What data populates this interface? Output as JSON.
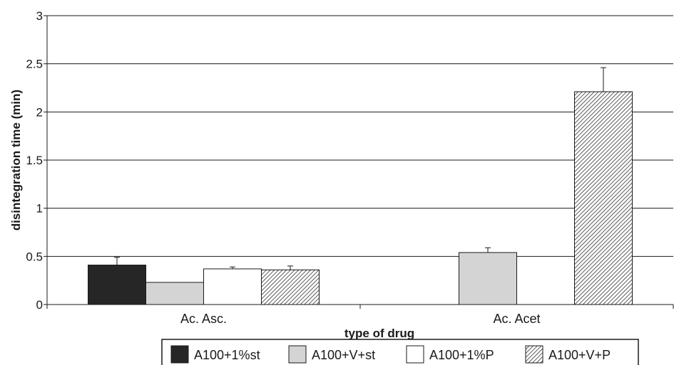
{
  "chart_data": {
    "type": "bar",
    "title": "",
    "xlabel": "type of drug",
    "ylabel": "disintegration time (min)",
    "ylim": [
      0,
      3
    ],
    "yticks": [
      0,
      0.5,
      1,
      1.5,
      2,
      2.5,
      3
    ],
    "ytick_labels": [
      "0",
      "0.5",
      "1",
      "1.5",
      "2",
      "2.5",
      "3"
    ],
    "grid": true,
    "legend_position": "bottom",
    "categories": [
      "Ac. Asc.",
      "Ac. Acet"
    ],
    "series": [
      {
        "name": "A100+1%st",
        "values": [
          0.41,
          null
        ],
        "errors": [
          0.08,
          null
        ],
        "fill": "#262626",
        "pattern": "solid"
      },
      {
        "name": "A100+V+st",
        "values": [
          0.23,
          0.54
        ],
        "errors": [
          null,
          0.05
        ],
        "fill": "#d4d4d4",
        "pattern": "solid"
      },
      {
        "name": "A100+1%P",
        "values": [
          0.37,
          null
        ],
        "errors": [
          0.02,
          null
        ],
        "fill": "#ffffff",
        "pattern": "solid"
      },
      {
        "name": "A100+V+P",
        "values": [
          0.36,
          2.21
        ],
        "errors": [
          0.04,
          0.25
        ],
        "fill": "#ffffff",
        "pattern": "diagonal-hatch"
      }
    ]
  }
}
